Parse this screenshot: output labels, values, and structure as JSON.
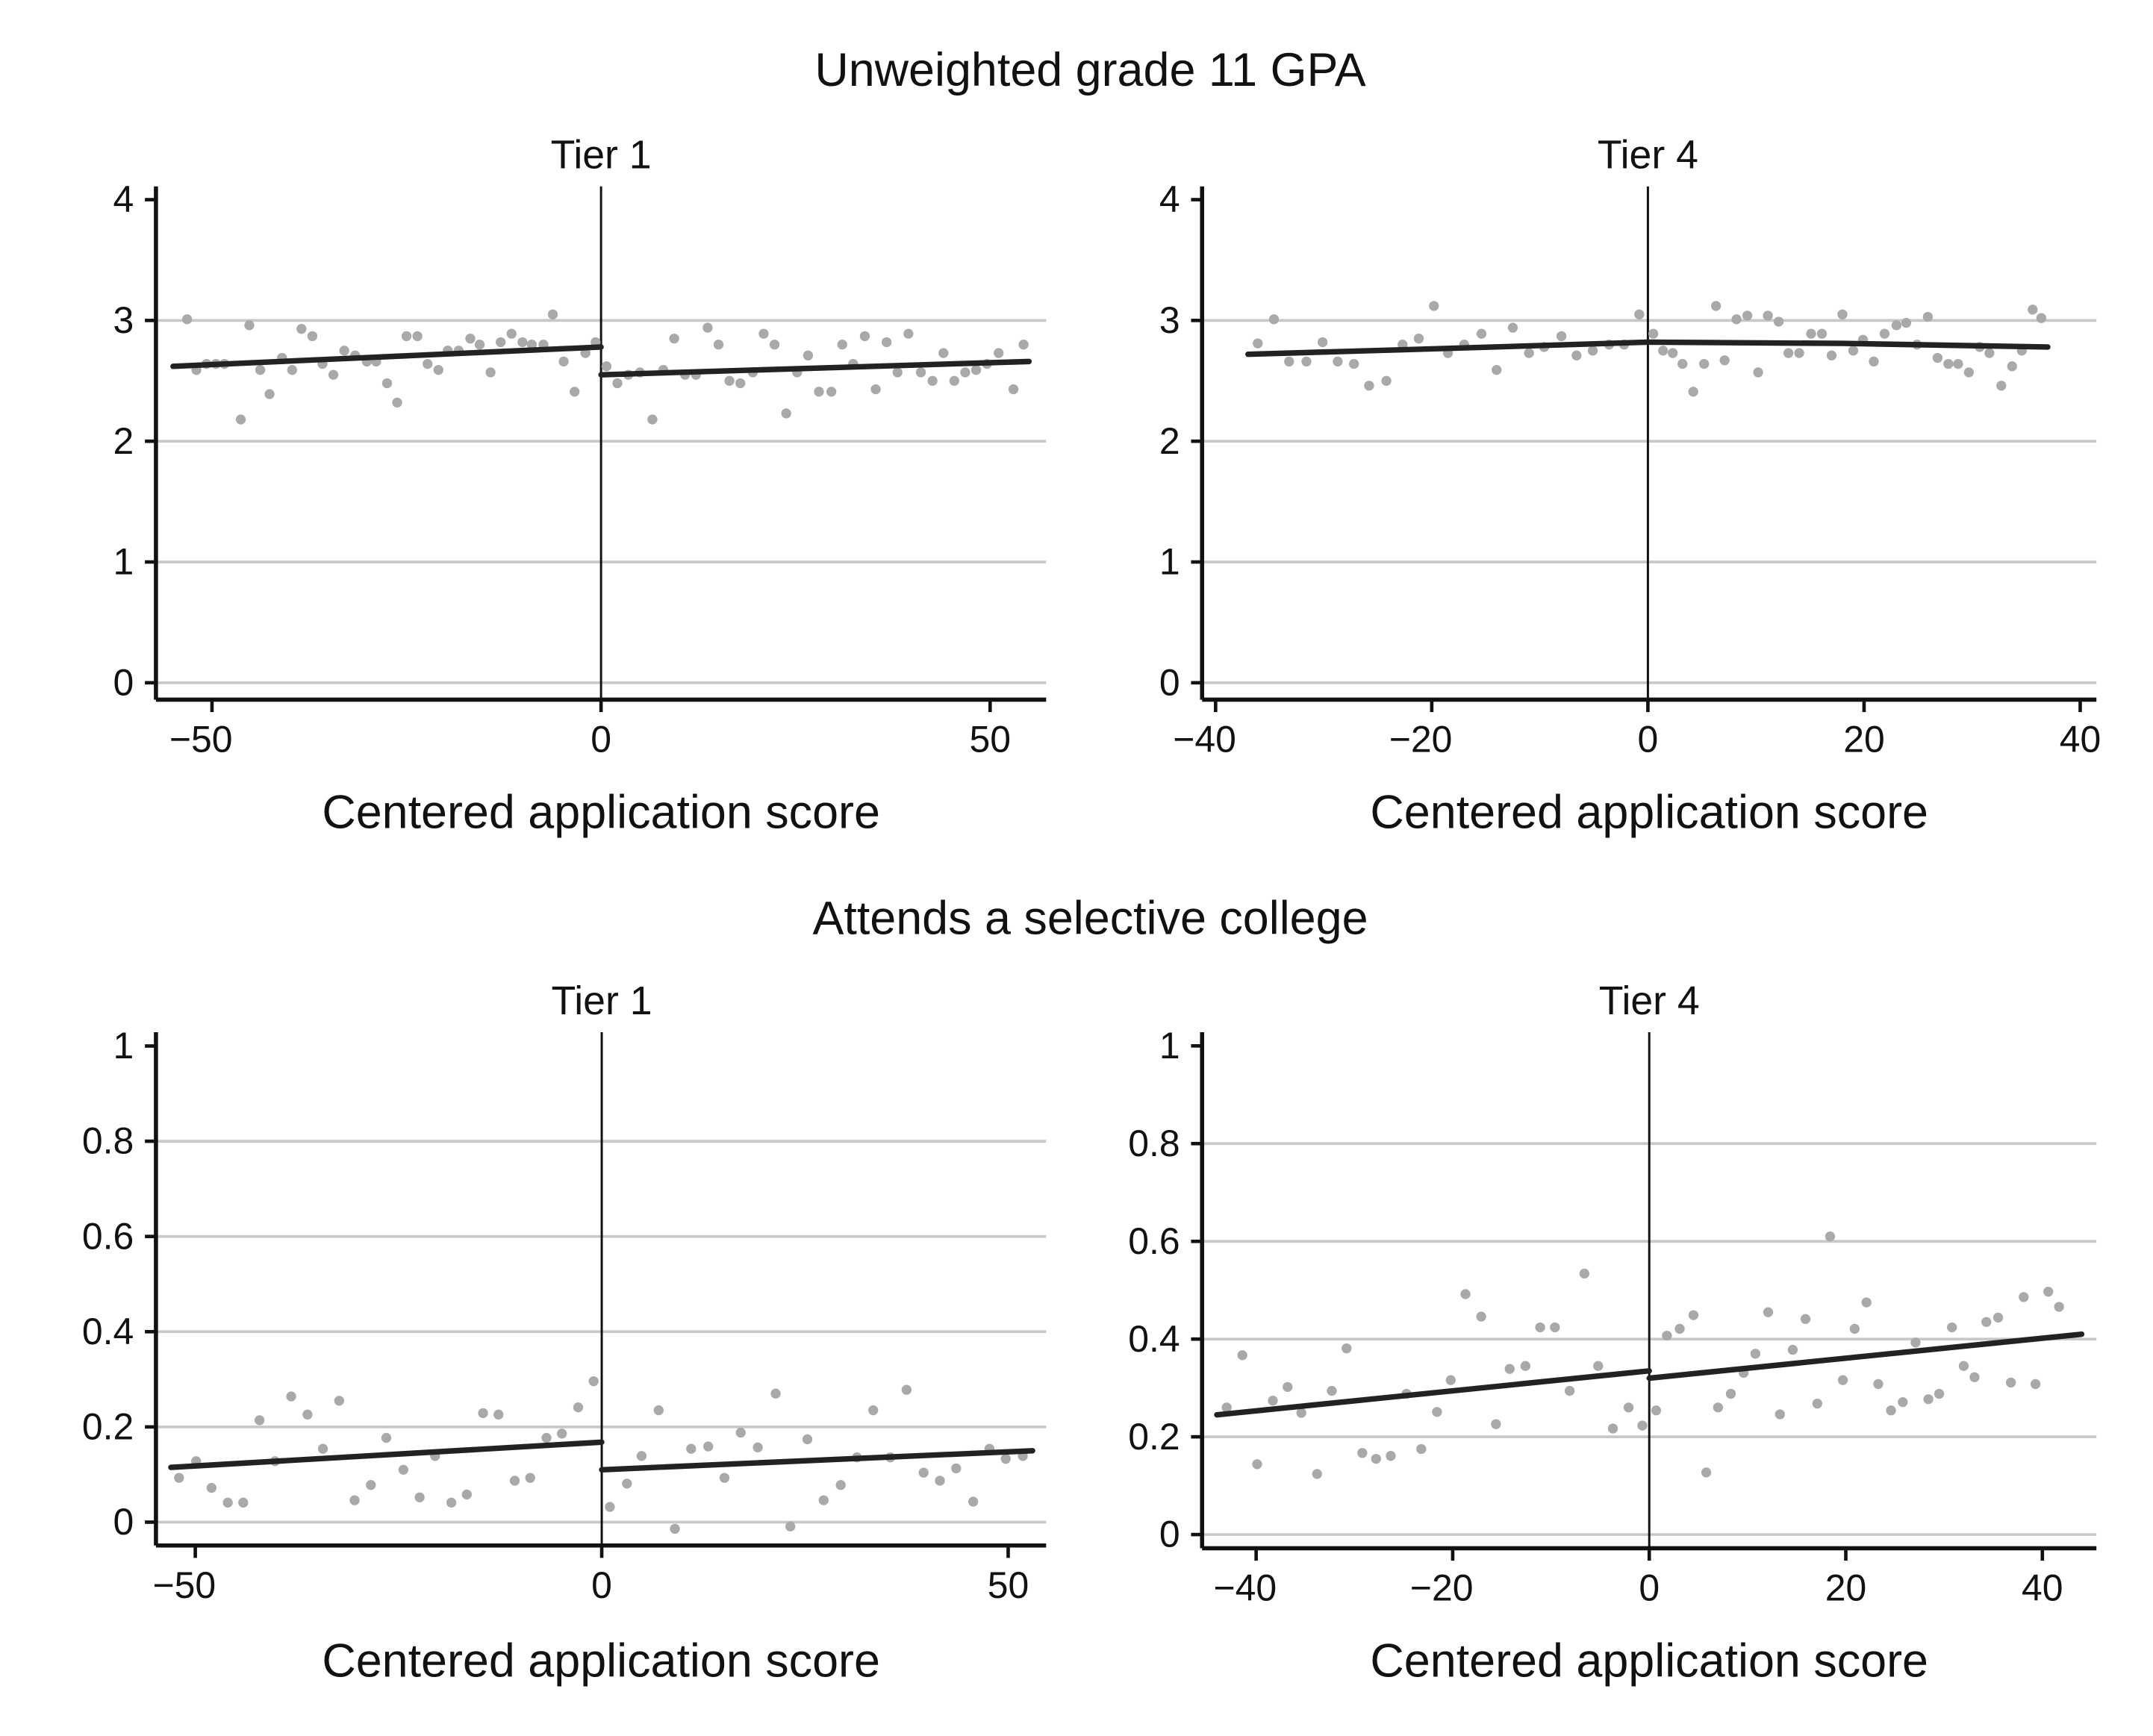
{
  "section_titles": [
    "Unweighted grade 11 GPA",
    "Attends a selective college"
  ],
  "colors": {
    "points": "#a9a9a9",
    "fit_line": "#222222",
    "grid": "#c8c8c8",
    "axis": "#111111"
  },
  "chart_data": [
    {
      "type": "scatter",
      "section": "Unweighted grade 11 GPA",
      "title": "Tier 1",
      "xlabel": "Centered application score",
      "ylabel": "",
      "xlim": [
        -57.2,
        57.2
      ],
      "ylim": [
        -0.14,
        4.11
      ],
      "xticks": [
        {
          "v": -50,
          "label": "−50"
        },
        {
          "v": 0,
          "label": "0"
        },
        {
          "v": 50,
          "label": "50"
        }
      ],
      "yticks": [
        {
          "v": 0,
          "label": "0"
        },
        {
          "v": 1,
          "label": "1"
        },
        {
          "v": 2,
          "label": "2"
        },
        {
          "v": 3,
          "label": "3"
        },
        {
          "v": 4,
          "label": "4"
        }
      ],
      "grid": true,
      "cutoff": 0,
      "points": [
        [
          -53.2,
          3.01
        ],
        [
          -52.0,
          2.59
        ],
        [
          -50.7,
          2.64
        ],
        [
          -49.5,
          2.64
        ],
        [
          -48.4,
          2.64
        ],
        [
          -46.3,
          2.18
        ],
        [
          -45.2,
          2.96
        ],
        [
          -43.8,
          2.59
        ],
        [
          -42.6,
          2.39
        ],
        [
          -41.0,
          2.69
        ],
        [
          -39.7,
          2.59
        ],
        [
          -38.5,
          2.93
        ],
        [
          -37.1,
          2.87
        ],
        [
          -35.8,
          2.64
        ],
        [
          -34.4,
          2.55
        ],
        [
          -33.0,
          2.75
        ],
        [
          -31.6,
          2.71
        ],
        [
          -30.1,
          2.66
        ],
        [
          -28.9,
          2.66
        ],
        [
          -27.5,
          2.48
        ],
        [
          -26.2,
          2.32
        ],
        [
          -25.0,
          2.87
        ],
        [
          -23.6,
          2.87
        ],
        [
          -22.3,
          2.64
        ],
        [
          -20.9,
          2.59
        ],
        [
          -19.7,
          2.75
        ],
        [
          -18.3,
          2.75
        ],
        [
          -16.8,
          2.85
        ],
        [
          -15.6,
          2.8
        ],
        [
          -14.2,
          2.57
        ],
        [
          -12.9,
          2.82
        ],
        [
          -11.5,
          2.89
        ],
        [
          -10.1,
          2.82
        ],
        [
          -8.9,
          2.8
        ],
        [
          -7.4,
          2.8
        ],
        [
          -6.2,
          3.05
        ],
        [
          -4.8,
          2.66
        ],
        [
          -3.4,
          2.41
        ],
        [
          -2.0,
          2.73
        ],
        [
          -0.7,
          2.82
        ],
        [
          0.7,
          2.62
        ],
        [
          2.1,
          2.48
        ],
        [
          3.5,
          2.55
        ],
        [
          5.0,
          2.57
        ],
        [
          6.6,
          2.18
        ],
        [
          8.0,
          2.59
        ],
        [
          9.4,
          2.85
        ],
        [
          10.8,
          2.55
        ],
        [
          12.2,
          2.55
        ],
        [
          13.7,
          2.94
        ],
        [
          15.1,
          2.8
        ],
        [
          16.5,
          2.5
        ],
        [
          17.9,
          2.48
        ],
        [
          19.5,
          2.57
        ],
        [
          20.9,
          2.89
        ],
        [
          22.3,
          2.8
        ],
        [
          23.8,
          2.23
        ],
        [
          25.2,
          2.57
        ],
        [
          26.6,
          2.71
        ],
        [
          28.0,
          2.41
        ],
        [
          29.6,
          2.41
        ],
        [
          31.0,
          2.8
        ],
        [
          32.4,
          2.64
        ],
        [
          33.9,
          2.87
        ],
        [
          35.3,
          2.43
        ],
        [
          36.7,
          2.82
        ],
        [
          38.1,
          2.57
        ],
        [
          39.5,
          2.89
        ],
        [
          41.1,
          2.57
        ],
        [
          42.6,
          2.5
        ],
        [
          44.0,
          2.73
        ],
        [
          45.4,
          2.5
        ],
        [
          46.8,
          2.57
        ],
        [
          48.2,
          2.59
        ],
        [
          49.6,
          2.64
        ],
        [
          51.1,
          2.73
        ],
        [
          53.0,
          2.43
        ],
        [
          54.3,
          2.8
        ]
      ],
      "fit_lines": [
        [
          [
            -55,
            2.62
          ],
          [
            0,
            2.78
          ]
        ],
        [
          [
            0,
            2.55
          ],
          [
            55,
            2.66
          ]
        ]
      ]
    },
    {
      "type": "scatter",
      "section": "Unweighted grade 11 GPA",
      "title": "Tier 4",
      "xlabel": "Centered application score",
      "ylabel": "",
      "xlim": [
        -41.25,
        41.5
      ],
      "ylim": [
        -0.14,
        4.11
      ],
      "xticks": [
        {
          "v": -40,
          "label": "−40"
        },
        {
          "v": -20,
          "label": "−20"
        },
        {
          "v": 0,
          "label": "0"
        },
        {
          "v": 20,
          "label": "20"
        },
        {
          "v": 40,
          "label": "40"
        }
      ],
      "yticks": [
        {
          "v": 0,
          "label": "0"
        },
        {
          "v": 1,
          "label": "1"
        },
        {
          "v": 2,
          "label": "2"
        },
        {
          "v": 3,
          "label": "3"
        },
        {
          "v": 4,
          "label": "4"
        }
      ],
      "grid": true,
      "cutoff": 0,
      "points": [
        [
          -36.1,
          2.81
        ],
        [
          -34.6,
          3.01
        ],
        [
          -33.2,
          2.66
        ],
        [
          -31.6,
          2.66
        ],
        [
          -30.1,
          2.82
        ],
        [
          -28.7,
          2.66
        ],
        [
          -27.2,
          2.64
        ],
        [
          -25.8,
          2.46
        ],
        [
          -24.2,
          2.5
        ],
        [
          -22.7,
          2.8
        ],
        [
          -21.2,
          2.85
        ],
        [
          -19.8,
          3.12
        ],
        [
          -18.5,
          2.73
        ],
        [
          -17.0,
          2.8
        ],
        [
          -15.4,
          2.89
        ],
        [
          -14.0,
          2.59
        ],
        [
          -12.5,
          2.94
        ],
        [
          -11.0,
          2.73
        ],
        [
          -9.6,
          2.78
        ],
        [
          -8.0,
          2.87
        ],
        [
          -6.6,
          2.71
        ],
        [
          -5.1,
          2.75
        ],
        [
          -3.6,
          2.8
        ],
        [
          -2.2,
          2.8
        ],
        [
          -0.8,
          3.05
        ],
        [
          0.5,
          2.89
        ],
        [
          1.4,
          2.75
        ],
        [
          2.3,
          2.73
        ],
        [
          3.2,
          2.64
        ],
        [
          4.2,
          2.41
        ],
        [
          5.2,
          2.64
        ],
        [
          6.3,
          3.12
        ],
        [
          7.1,
          2.67
        ],
        [
          8.2,
          3.01
        ],
        [
          9.2,
          3.04
        ],
        [
          10.2,
          2.57
        ],
        [
          11.1,
          3.04
        ],
        [
          12.1,
          2.99
        ],
        [
          13.0,
          2.73
        ],
        [
          14.0,
          2.73
        ],
        [
          15.1,
          2.89
        ],
        [
          16.1,
          2.89
        ],
        [
          17.0,
          2.71
        ],
        [
          18.0,
          3.05
        ],
        [
          19.0,
          2.75
        ],
        [
          19.9,
          2.84
        ],
        [
          20.9,
          2.66
        ],
        [
          21.9,
          2.89
        ],
        [
          23.0,
          2.96
        ],
        [
          23.9,
          2.98
        ],
        [
          24.9,
          2.8
        ],
        [
          25.9,
          3.03
        ],
        [
          26.8,
          2.69
        ],
        [
          27.8,
          2.64
        ],
        [
          28.7,
          2.64
        ],
        [
          29.7,
          2.57
        ],
        [
          30.7,
          2.78
        ],
        [
          31.6,
          2.73
        ],
        [
          32.7,
          2.46
        ],
        [
          33.7,
          2.62
        ],
        [
          34.6,
          2.75
        ],
        [
          35.6,
          3.09
        ],
        [
          36.4,
          3.02
        ]
      ],
      "fit_lines": [
        [
          [
            -37,
            2.72
          ],
          [
            -18,
            2.77
          ],
          [
            0,
            2.82
          ]
        ],
        [
          [
            0,
            2.82
          ],
          [
            18,
            2.81
          ],
          [
            37,
            2.78
          ]
        ]
      ]
    },
    {
      "type": "scatter",
      "section": "Attends a selective college",
      "title": "Tier 1",
      "xlabel": "Centered application score",
      "ylabel": "",
      "xlim": [
        -54.84,
        54.67
      ],
      "ylim": [
        -0.049,
        1.029
      ],
      "xticks": [
        {
          "v": -50,
          "label": "−50"
        },
        {
          "v": 0,
          "label": "0"
        },
        {
          "v": 50,
          "label": "50"
        }
      ],
      "yticks": [
        {
          "v": 0,
          "label": "0"
        },
        {
          "v": 0.2,
          "label": "0.2"
        },
        {
          "v": 0.4,
          "label": "0.4"
        },
        {
          "v": 0.6,
          "label": "0.6"
        },
        {
          "v": 0.8,
          "label": "0.8"
        },
        {
          "v": 1,
          "label": "1"
        }
      ],
      "grid": true,
      "cutoff": 0,
      "points": [
        [
          -52.0,
          0.093
        ],
        [
          -49.9,
          0.128
        ],
        [
          -48.0,
          0.072
        ],
        [
          -46.0,
          0.041
        ],
        [
          -44.1,
          0.041
        ],
        [
          -42.1,
          0.214
        ],
        [
          -40.2,
          0.128
        ],
        [
          -38.2,
          0.264
        ],
        [
          -36.2,
          0.226
        ],
        [
          -34.3,
          0.154
        ],
        [
          -32.3,
          0.255
        ],
        [
          -30.4,
          0.046
        ],
        [
          -28.4,
          0.078
        ],
        [
          -26.5,
          0.177
        ],
        [
          -24.4,
          0.11
        ],
        [
          -22.4,
          0.052
        ],
        [
          -20.5,
          0.139
        ],
        [
          -18.5,
          0.041
        ],
        [
          -16.6,
          0.058
        ],
        [
          -14.6,
          0.229
        ],
        [
          -12.7,
          0.226
        ],
        [
          -10.7,
          0.087
        ],
        [
          -8.8,
          0.093
        ],
        [
          -6.8,
          0.177
        ],
        [
          -4.9,
          0.186
        ],
        [
          -2.9,
          0.241
        ],
        [
          -1.0,
          0.296
        ],
        [
          1.0,
          0.032
        ],
        [
          3.1,
          0.081
        ],
        [
          4.9,
          0.139
        ],
        [
          7.0,
          0.235
        ],
        [
          9.0,
          -0.014
        ],
        [
          11.0,
          0.154
        ],
        [
          13.1,
          0.159
        ],
        [
          15.1,
          0.093
        ],
        [
          17.1,
          0.188
        ],
        [
          19.2,
          0.157
        ],
        [
          21.4,
          0.27
        ],
        [
          23.2,
          -0.009
        ],
        [
          25.3,
          0.174
        ],
        [
          27.3,
          0.046
        ],
        [
          29.4,
          0.078
        ],
        [
          31.4,
          0.136
        ],
        [
          33.4,
          0.235
        ],
        [
          35.5,
          0.136
        ],
        [
          37.5,
          0.278
        ],
        [
          39.6,
          0.104
        ],
        [
          41.6,
          0.087
        ],
        [
          43.6,
          0.113
        ],
        [
          45.7,
          0.043
        ],
        [
          47.7,
          0.154
        ],
        [
          49.7,
          0.133
        ],
        [
          51.8,
          0.139
        ]
      ],
      "fit_lines": [
        [
          [
            -53,
            0.115
          ],
          [
            0,
            0.168
          ]
        ],
        [
          [
            0,
            0.11
          ],
          [
            53,
            0.15
          ]
        ]
      ]
    },
    {
      "type": "scatter",
      "section": "Attends a selective college",
      "title": "Tier 4",
      "xlabel": "Centered application score",
      "ylabel": "",
      "xlim": [
        -45.5,
        45.5
      ],
      "ylim": [
        -0.028,
        1.028
      ],
      "xticks": [
        {
          "v": -40,
          "label": "−40"
        },
        {
          "v": -20,
          "label": "−20"
        },
        {
          "v": 0,
          "label": "0"
        },
        {
          "v": 20,
          "label": "20"
        },
        {
          "v": 40,
          "label": "40"
        }
      ],
      "yticks": [
        {
          "v": 0,
          "label": "0"
        },
        {
          "v": 0.2,
          "label": "0.2"
        },
        {
          "v": 0.4,
          "label": "0.4"
        },
        {
          "v": 0.6,
          "label": "0.6"
        },
        {
          "v": 0.8,
          "label": "0.8"
        },
        {
          "v": 1,
          "label": "1"
        }
      ],
      "grid": true,
      "cutoff": 0,
      "points": [
        [
          -43.0,
          0.26
        ],
        [
          -41.4,
          0.367
        ],
        [
          -39.9,
          0.144
        ],
        [
          -38.3,
          0.274
        ],
        [
          -36.8,
          0.302
        ],
        [
          -35.4,
          0.249
        ],
        [
          -33.8,
          0.124
        ],
        [
          -32.3,
          0.294
        ],
        [
          -30.8,
          0.381
        ],
        [
          -29.2,
          0.167
        ],
        [
          -27.8,
          0.155
        ],
        [
          -26.3,
          0.161
        ],
        [
          -24.7,
          0.288
        ],
        [
          -23.2,
          0.175
        ],
        [
          -21.6,
          0.251
        ],
        [
          -20.2,
          0.316
        ],
        [
          -18.7,
          0.492
        ],
        [
          -17.1,
          0.446
        ],
        [
          -15.6,
          0.226
        ],
        [
          -14.2,
          0.339
        ],
        [
          -12.6,
          0.345
        ],
        [
          -11.1,
          0.424
        ],
        [
          -9.6,
          0.424
        ],
        [
          -8.1,
          0.294
        ],
        [
          -6.6,
          0.534
        ],
        [
          -5.2,
          0.345
        ],
        [
          -3.7,
          0.217
        ],
        [
          -2.1,
          0.26
        ],
        [
          -0.7,
          0.223
        ],
        [
          0.7,
          0.254
        ],
        [
          1.8,
          0.407
        ],
        [
          3.1,
          0.421
        ],
        [
          4.5,
          0.449
        ],
        [
          5.8,
          0.127
        ],
        [
          7.0,
          0.26
        ],
        [
          8.3,
          0.288
        ],
        [
          9.6,
          0.331
        ],
        [
          10.8,
          0.37
        ],
        [
          12.1,
          0.455
        ],
        [
          13.3,
          0.246
        ],
        [
          14.6,
          0.378
        ],
        [
          15.9,
          0.441
        ],
        [
          17.1,
          0.268
        ],
        [
          18.4,
          0.61
        ],
        [
          19.7,
          0.316
        ],
        [
          20.9,
          0.421
        ],
        [
          22.1,
          0.475
        ],
        [
          23.3,
          0.308
        ],
        [
          24.6,
          0.254
        ],
        [
          25.8,
          0.271
        ],
        [
          27.1,
          0.393
        ],
        [
          28.4,
          0.277
        ],
        [
          29.5,
          0.288
        ],
        [
          30.8,
          0.424
        ],
        [
          32.0,
          0.345
        ],
        [
          33.1,
          0.322
        ],
        [
          34.3,
          0.435
        ],
        [
          35.5,
          0.444
        ],
        [
          36.8,
          0.311
        ],
        [
          38.1,
          0.486
        ],
        [
          39.3,
          0.308
        ],
        [
          40.6,
          0.497
        ],
        [
          41.7,
          0.466
        ]
      ],
      "fit_lines": [
        [
          [
            -44,
            0.245
          ],
          [
            0,
            0.335
          ]
        ],
        [
          [
            0,
            0.32
          ],
          [
            44,
            0.41
          ]
        ]
      ]
    }
  ]
}
